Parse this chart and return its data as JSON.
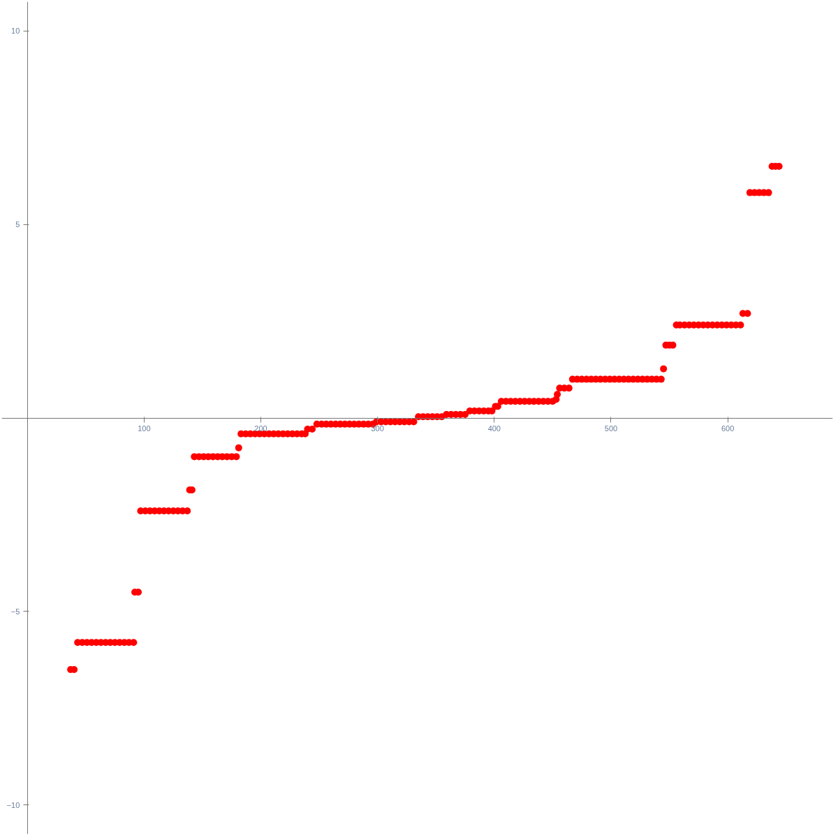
{
  "chart_data": {
    "type": "scatter",
    "marker": "circle",
    "grid": false,
    "xlim": [
      -22,
      690
    ],
    "ylim": [
      -10.75,
      10.75
    ],
    "xticks": [
      100,
      200,
      300,
      400,
      500,
      600
    ],
    "yticks": [
      -10,
      -5,
      5,
      10
    ],
    "series": [
      {
        "color": "#ff0000",
        "x": [
          37,
          40,
          43,
          47,
          51,
          55,
          59,
          63,
          67,
          71,
          75,
          79,
          83,
          87,
          91,
          92,
          95,
          97,
          101,
          105,
          109,
          113,
          117,
          121,
          125,
          129,
          133,
          137,
          139,
          141,
          143,
          147,
          151,
          155,
          159,
          163,
          167,
          171,
          175,
          179,
          181,
          183,
          187,
          191,
          195,
          199,
          203,
          207,
          211,
          215,
          219,
          223,
          227,
          231,
          235,
          238,
          240,
          244,
          248,
          252,
          256,
          260,
          264,
          268,
          272,
          276,
          280,
          284,
          288,
          292,
          296,
          299,
          303,
          307,
          311,
          315,
          319,
          323,
          327,
          331,
          335,
          339,
          343,
          347,
          351,
          355,
          359,
          363,
          367,
          371,
          375,
          379,
          383,
          387,
          391,
          395,
          398,
          401,
          403,
          406,
          410,
          414,
          418,
          422,
          426,
          430,
          434,
          438,
          442,
          446,
          450,
          453,
          454,
          456,
          460,
          464,
          467,
          471,
          475,
          479,
          483,
          487,
          491,
          495,
          499,
          503,
          507,
          511,
          515,
          519,
          523,
          527,
          531,
          535,
          539,
          543,
          545,
          547,
          550,
          553,
          556,
          559,
          563,
          567,
          571,
          575,
          579,
          583,
          587,
          591,
          595,
          599,
          603,
          607,
          611,
          613,
          617,
          619,
          623,
          627,
          631,
          635,
          638,
          641,
          644
        ],
        "values": [
          -6.5,
          -6.5,
          -5.8,
          -5.8,
          -5.8,
          -5.8,
          -5.8,
          -5.8,
          -5.8,
          -5.8,
          -5.8,
          -5.8,
          -5.8,
          -5.8,
          -5.8,
          -4.5,
          -4.5,
          -2.4,
          -2.4,
          -2.4,
          -2.4,
          -2.4,
          -2.4,
          -2.4,
          -2.4,
          -2.4,
          -2.4,
          -2.4,
          -1.86,
          -1.86,
          -1.0,
          -1.0,
          -1.0,
          -1.0,
          -1.0,
          -1.0,
          -1.0,
          -1.0,
          -1.0,
          -1.0,
          -0.77,
          -0.41,
          -0.41,
          -0.41,
          -0.41,
          -0.41,
          -0.41,
          -0.41,
          -0.41,
          -0.41,
          -0.41,
          -0.41,
          -0.41,
          -0.41,
          -0.41,
          -0.41,
          -0.29,
          -0.29,
          -0.16,
          -0.16,
          -0.16,
          -0.16,
          -0.16,
          -0.16,
          -0.16,
          -0.16,
          -0.16,
          -0.16,
          -0.16,
          -0.16,
          -0.16,
          -0.1,
          -0.1,
          -0.1,
          -0.1,
          -0.1,
          -0.1,
          -0.1,
          -0.1,
          -0.1,
          0.03,
          0.03,
          0.03,
          0.03,
          0.03,
          0.03,
          0.09,
          0.09,
          0.09,
          0.09,
          0.09,
          0.18,
          0.18,
          0.18,
          0.18,
          0.18,
          0.18,
          0.3,
          0.3,
          0.43,
          0.43,
          0.43,
          0.43,
          0.43,
          0.43,
          0.43,
          0.43,
          0.43,
          0.43,
          0.43,
          0.43,
          0.48,
          0.61,
          0.77,
          0.77,
          0.77,
          1.0,
          1.0,
          1.0,
          1.0,
          1.0,
          1.0,
          1.0,
          1.0,
          1.0,
          1.0,
          1.0,
          1.0,
          1.0,
          1.0,
          1.0,
          1.0,
          1.0,
          1.0,
          1.0,
          1.0,
          1.27,
          1.88,
          1.88,
          1.88,
          2.4,
          2.4,
          2.4,
          2.4,
          2.4,
          2.4,
          2.4,
          2.4,
          2.4,
          2.4,
          2.4,
          2.4,
          2.4,
          2.4,
          2.4,
          2.7,
          2.7,
          5.82,
          5.82,
          5.82,
          5.82,
          5.82,
          6.5,
          6.5,
          6.5
        ]
      }
    ]
  }
}
